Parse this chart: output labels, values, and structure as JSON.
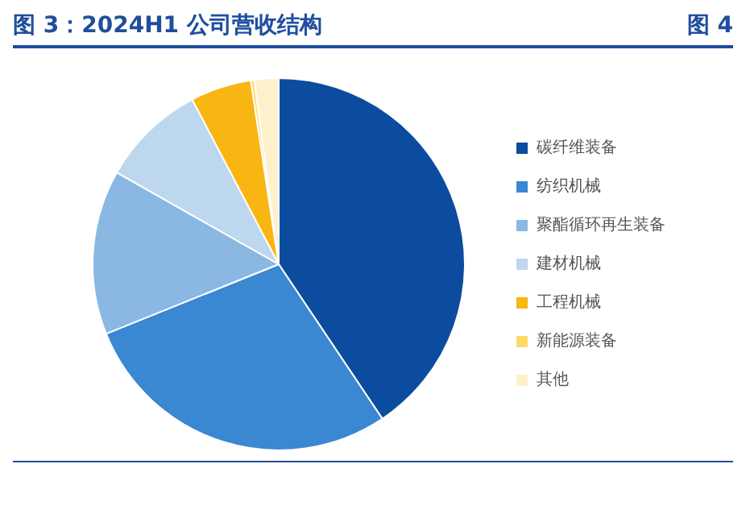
{
  "chart_data": {
    "type": "pie",
    "title": "图 3：2024H1 公司营收结构",
    "annotations": [
      "图 4"
    ],
    "categories": [
      "碳纤维装备",
      "纺织机械",
      "聚酯循环再生装备",
      "建材机械",
      "工程机械",
      "新能源装备",
      "其他"
    ],
    "values": [
      40.6,
      28.3,
      14.3,
      9.1,
      5.3,
      0.3,
      2.1
    ],
    "colors": [
      "#0b4c9e",
      "#3a87d2",
      "#8ab8e3",
      "#bdd7ee",
      "#f9b512",
      "#ffd966",
      "#fff0cc"
    ],
    "legend": "right"
  }
}
